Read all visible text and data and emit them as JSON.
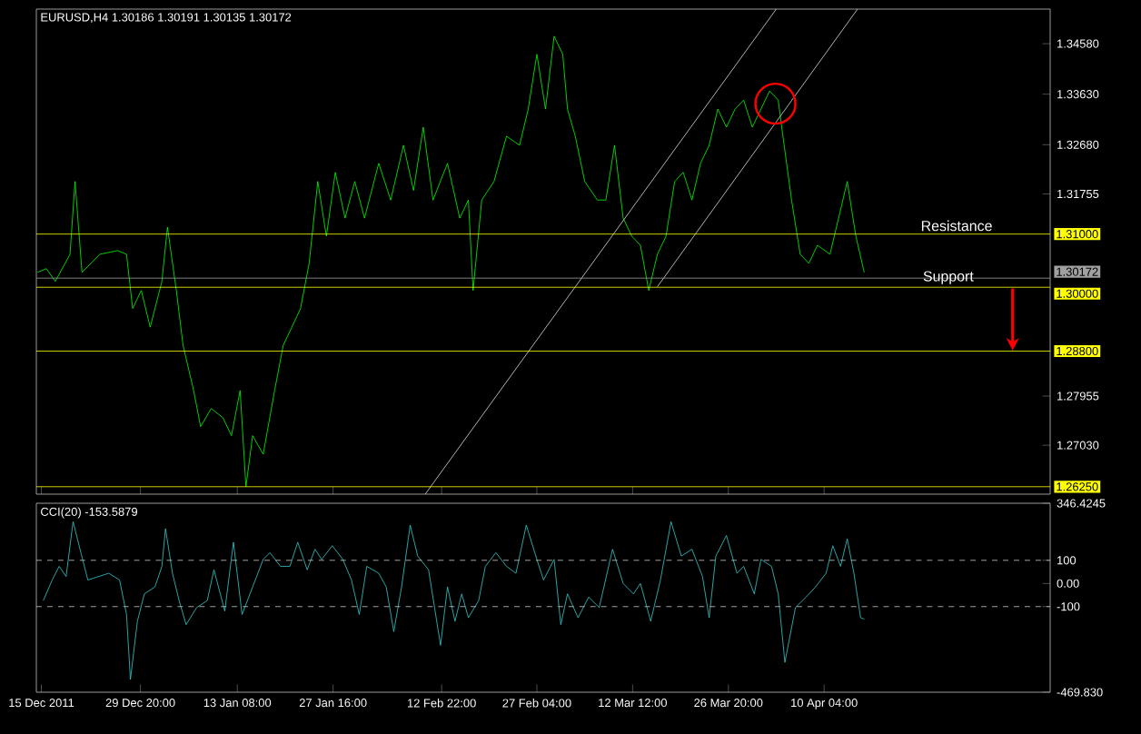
{
  "chart_data": [
    {
      "type": "line",
      "title": "EURUSD,H4 1.30186 1.30191 1.30135 1.30172",
      "tick_labels": "y",
      "xlim": [
        "2011-12-14T06:00",
        "2012-05-14T00:00"
      ],
      "xticks": [
        {
          "value": "2011-12-15",
          "label": null
        },
        {
          "value": "2011-12-29T20:00",
          "label": null
        },
        {
          "value": "2012-01-13T08:00",
          "label": null
        },
        {
          "value": "2012-01-27T16:00",
          "label": null
        },
        {
          "value": "2012-02-12T22:00",
          "label": null
        },
        {
          "value": "2012-02-27T04:00",
          "label": null
        },
        {
          "value": "2012-03-12T12:00",
          "label": null
        },
        {
          "value": "2012-03-26T20:00",
          "label": null
        },
        {
          "value": "2012-04-10T04:00",
          "label": null
        }
      ],
      "ylim": [
        1.2611,
        1.3523
      ],
      "yticks": [
        {
          "value": 1.3458,
          "label": "1.34580"
        },
        {
          "value": 1.3363,
          "label": "1.33630"
        },
        {
          "value": 1.3268,
          "label": "1.32680"
        },
        {
          "value": 1.31755,
          "label": "1.31755"
        },
        {
          "value": 1.27955,
          "label": "1.27955"
        },
        {
          "value": 1.2703,
          "label": "1.27030"
        }
      ],
      "series": [
        {
          "color": "#00ff00",
          "x": [
            "2011-12-14T10:00",
            "2011-12-15T18:00",
            "2011-12-17T02:00",
            "2011-12-19T07:00",
            "2011-12-20T01:00",
            "2011-12-21T02:00",
            "2011-12-23T18:00",
            "2011-12-26T10:00",
            "2011-12-27T18:00",
            "2011-12-28T16:00",
            "2011-12-29T23:00",
            "2011-12-31T07:00",
            "2012-01-02T01:00",
            "2012-01-02T21:00",
            "2012-01-04T05:00",
            "2012-01-05T05:00",
            "2012-01-06T19:00",
            "2012-01-07T20:00",
            "2012-01-09T10:00",
            "2012-01-11T04:00",
            "2012-01-12T11:00",
            "2012-01-13T18:00",
            "2012-01-14T15:00",
            "2012-01-15T15:00",
            "2012-01-17T05:00",
            "2012-01-18T22:00",
            "2012-01-20T05:00",
            "2012-01-21T12:00",
            "2012-01-22T19:00",
            "2012-01-24T02:00",
            "2012-01-25T09:00",
            "2012-01-26T16:00",
            "2012-01-28T00:00",
            "2012-01-29T11:00",
            "2012-01-30T22:00",
            "2012-02-01T09:00",
            "2012-02-03T12:00",
            "2012-02-05T07:00",
            "2012-02-07T05:00",
            "2012-02-08T17:00",
            "2012-02-10T04:00",
            "2012-02-11T15:00",
            "2012-02-13T19:00",
            "2012-02-15T15:00",
            "2012-02-16T22:00",
            "2012-02-17T15:00",
            "2012-02-18T22:00",
            "2012-02-20T18:00",
            "2012-02-22T15:00",
            "2012-02-24T14:00",
            "2012-02-25T21:00",
            "2012-02-27T04:00",
            "2012-02-28T11:00",
            "2012-02-29T18:00",
            "2012-03-02T01:00",
            "2012-03-02T18:00",
            "2012-03-03T22:00",
            "2012-03-05T08:00",
            "2012-03-07T05:00",
            "2012-03-08T12:00",
            "2012-03-09T19:00",
            "2012-03-11T02:00",
            "2012-03-12T09:00",
            "2012-03-13T16:00",
            "2012-03-14T22:00",
            "2012-03-16T05:00",
            "2012-03-17T12:00",
            "2012-03-18T19:00",
            "2012-03-20T02:00",
            "2012-03-21T09:00",
            "2012-03-22T16:00",
            "2012-03-23T23:00",
            "2012-03-25T06:00",
            "2012-03-26T13:00",
            "2012-03-27T20:00",
            "2012-03-29T03:00",
            "2012-03-30T10:00",
            "2012-03-31T17:00",
            "2012-04-02T00:00",
            "2012-04-03T07:00",
            "2012-04-04T00:00",
            "2012-04-05T07:00",
            "2012-04-06T14:00",
            "2012-04-07T21:00",
            "2012-04-09T04:00",
            "2012-04-11T01:00",
            "2012-04-12T08:00",
            "2012-04-13T15:00",
            "2012-04-14T22:00",
            "2012-04-16T04:00"
          ],
          "values": [
            1.3028,
            1.3035,
            1.3011,
            1.3062,
            1.3199,
            1.3028,
            1.3062,
            1.3069,
            1.3062,
            1.296,
            1.2994,
            1.2925,
            1.3011,
            1.3113,
            1.2994,
            1.2891,
            1.2806,
            1.2738,
            1.2772,
            1.2755,
            1.2721,
            1.2806,
            1.2625,
            1.2721,
            1.2686,
            1.2806,
            1.2891,
            1.2925,
            1.296,
            1.3045,
            1.3199,
            1.3096,
            1.3216,
            1.313,
            1.3199,
            1.313,
            1.3233,
            1.3164,
            1.3267,
            1.3182,
            1.3301,
            1.3164,
            1.3233,
            1.313,
            1.3164,
            1.2994,
            1.3164,
            1.3199,
            1.3284,
            1.3267,
            1.3335,
            1.3438,
            1.3335,
            1.3472,
            1.3438,
            1.3335,
            1.3284,
            1.3199,
            1.3164,
            1.3164,
            1.3267,
            1.313,
            1.3096,
            1.3079,
            1.2994,
            1.3062,
            1.3096,
            1.3199,
            1.3216,
            1.3164,
            1.3233,
            1.3267,
            1.3335,
            1.3301,
            1.3335,
            1.3352,
            1.3301,
            1.3335,
            1.3369,
            1.3352,
            1.3284,
            1.3164,
            1.3062,
            1.3045,
            1.3079,
            1.3062,
            1.313,
            1.3199,
            1.3096,
            1.3028
          ]
        },
        {
          "color": "#dcdcdc",
          "x": [
            "2012-02-10T11:00",
            "2012-04-03T00:00"
          ],
          "values": [
            1.2611,
            1.3523
          ]
        },
        {
          "color": "#dcdcdc",
          "x": [
            "2012-03-16T05:00",
            "2012-04-15T04:00"
          ],
          "values": [
            1.3001,
            1.3523
          ]
        }
      ],
      "ref_lines": [
        {
          "axis": "y",
          "value": 1.31,
          "label": "1.31000",
          "color": "#ffff00"
        },
        {
          "axis": "y",
          "value": 1.3,
          "label": "1.30000",
          "color": "#ffff00"
        },
        {
          "axis": "y",
          "value": 1.288,
          "label": "1.28800",
          "color": "#ffff00"
        },
        {
          "axis": "y",
          "value": 1.2625,
          "label": "1.26250",
          "color": "#ffff00"
        },
        {
          "axis": "y",
          "value": 1.30172,
          "label": "1.30172",
          "color": "#a0a0a0"
        }
      ],
      "annotations": [
        {
          "text": "Resistance",
          "x": "2012-04-30T00:00",
          "y": 1.31
        },
        {
          "text": "Support",
          "x": "2012-04-28T18:00",
          "y": 1.3
        }
      ]
    },
    {
      "type": "line",
      "title": "CCI(20) -153.5879",
      "xlim": [
        "2011-12-14T06:00",
        "2012-05-14T00:00"
      ],
      "xticks": [
        {
          "value": "2011-12-15",
          "label": "15 Dec 2011"
        },
        {
          "value": "2011-12-29T20:00",
          "label": "29 Dec 20:00"
        },
        {
          "value": "2012-01-13T08:00",
          "label": "13 Jan 08:00"
        },
        {
          "value": "2012-01-27T16:00",
          "label": "27 Jan 16:00"
        },
        {
          "value": "2012-02-12T22:00",
          "label": "12 Feb 22:00"
        },
        {
          "value": "2012-02-27T04:00",
          "label": "27 Feb 04:00"
        },
        {
          "value": "2012-03-12T12:00",
          "label": "12 Mar 12:00"
        },
        {
          "value": "2012-03-26T20:00",
          "label": "26 Mar 20:00"
        },
        {
          "value": "2012-04-10T04:00",
          "label": "10 Apr 04:00"
        }
      ],
      "ylim": [
        -469.83,
        346.4245
      ],
      "yticks": [
        346.4245,
        100,
        {
          "value": 0,
          "label": "0.00"
        },
        -100,
        {
          "value": -469.83,
          "label": "-469.830"
        }
      ],
      "series": [
        {
          "color": "#33cccc",
          "x": [
            "2011-12-15T07:00",
            "2011-12-16T15:00",
            "2011-12-17T16:00",
            "2011-12-18T17:00",
            "2011-12-19T18:00",
            "2011-12-20T22:00",
            "2011-12-21T23:00",
            "2011-12-23T14:00",
            "2011-12-25T02:00",
            "2011-12-26T17:00",
            "2011-12-27T18:00",
            "2011-12-28T08:00",
            "2011-12-29T09:00",
            "2011-12-30T10:00",
            "2012-01-01T00:00",
            "2012-01-02T01:00",
            "2012-01-02T14:00",
            "2012-01-03T15:00",
            "2012-01-04T15:00",
            "2012-01-05T16:00",
            "2012-01-07T06:00",
            "2012-01-08T20:00",
            "2012-01-09T20:00",
            "2012-01-11T11:00",
            "2012-01-12T18:00",
            "2012-01-14T01:00",
            "2012-01-15T15:00",
            "2012-01-17T05:00",
            "2012-01-18T05:00",
            "2012-01-19T19:00",
            "2012-01-21T05:00",
            "2012-01-22T09:00",
            "2012-01-23T19:00",
            "2012-01-24T23:00",
            "2012-01-25T23:00",
            "2012-01-27T13:00",
            "2012-01-29T03:00",
            "2012-01-30T10:00",
            "2012-01-31T14:00",
            "2012-02-01T17:00",
            "2012-02-03T12:00",
            "2012-02-04T15:00",
            "2012-02-05T18:00",
            "2012-02-06T22:00",
            "2012-02-08T05:00",
            "2012-02-09T08:00",
            "2012-02-10T23:00",
            "2012-02-12T18:00",
            "2012-02-13T19:00",
            "2012-02-14T22:00",
            "2012-02-15T22:00",
            "2012-02-16T22:00",
            "2012-02-18T11:00",
            "2012-02-19T11:00",
            "2012-02-21T01:00",
            "2012-02-22T15:00",
            "2012-02-24T01:00",
            "2012-02-25T14:00",
            "2012-02-27T04:00",
            "2012-02-28T04:00",
            "2012-02-29T18:00",
            "2012-03-01T18:00",
            "2012-03-02T18:00",
            "2012-03-04T08:00",
            "2012-03-05T22:00",
            "2012-03-07T12:00",
            "2012-03-09T12:00",
            "2012-03-11T02:00",
            "2012-03-12T15:00",
            "2012-03-13T16:00",
            "2012-03-15T05:00",
            "2012-03-16T16:00",
            "2012-03-18T06:00",
            "2012-03-19T19:00",
            "2012-03-21T09:00",
            "2012-03-22T23:00",
            "2012-03-23T23:00",
            "2012-03-24T23:00",
            "2012-03-26T13:00",
            "2012-03-28T03:00",
            "2012-03-29T03:00",
            "2012-03-30T17:00",
            "2012-03-31T17:00",
            "2012-04-02T07:00",
            "2012-04-03T07:00",
            "2012-04-04T07:00",
            "2012-04-05T21:00",
            "2012-04-07T11:00",
            "2012-04-08T21:00",
            "2012-04-10T11:00",
            "2012-04-11T11:00",
            "2012-04-12T15:00",
            "2012-04-13T15:00",
            "2012-04-14T15:00",
            "2012-04-15T15:00",
            "2012-04-16T04:00"
          ],
          "values": [
            -74,
            15,
            74,
            30,
            267,
            133,
            15,
            30,
            44,
            15,
            -134,
            -415,
            -163,
            -45,
            -15,
            74,
            237,
            44,
            -74,
            -178,
            -104,
            -74,
            59,
            -119,
            178,
            -134,
            -15,
            104,
            133,
            74,
            74,
            178,
            59,
            148,
            104,
            163,
            104,
            15,
            -134,
            74,
            44,
            -15,
            -208,
            -15,
            252,
            118,
            59,
            -267,
            -15,
            -163,
            -45,
            -148,
            -74,
            74,
            133,
            74,
            44,
            252,
            104,
            15,
            104,
            -178,
            -45,
            -148,
            -59,
            -104,
            148,
            0,
            -45,
            0,
            -163,
            15,
            267,
            118,
            148,
            30,
            -148,
            118,
            207,
            44,
            74,
            -45,
            104,
            74,
            -45,
            -341,
            -104,
            -59,
            -15,
            44,
            163,
            74,
            193,
            44,
            -148,
            -154
          ]
        }
      ],
      "ref_lines": [
        {
          "axis": "y",
          "value": 100,
          "color": "#c8c8c8",
          "line_style": "dashed"
        },
        {
          "axis": "y",
          "value": -100,
          "color": "#c8c8c8",
          "line_style": "dashed"
        }
      ]
    }
  ]
}
